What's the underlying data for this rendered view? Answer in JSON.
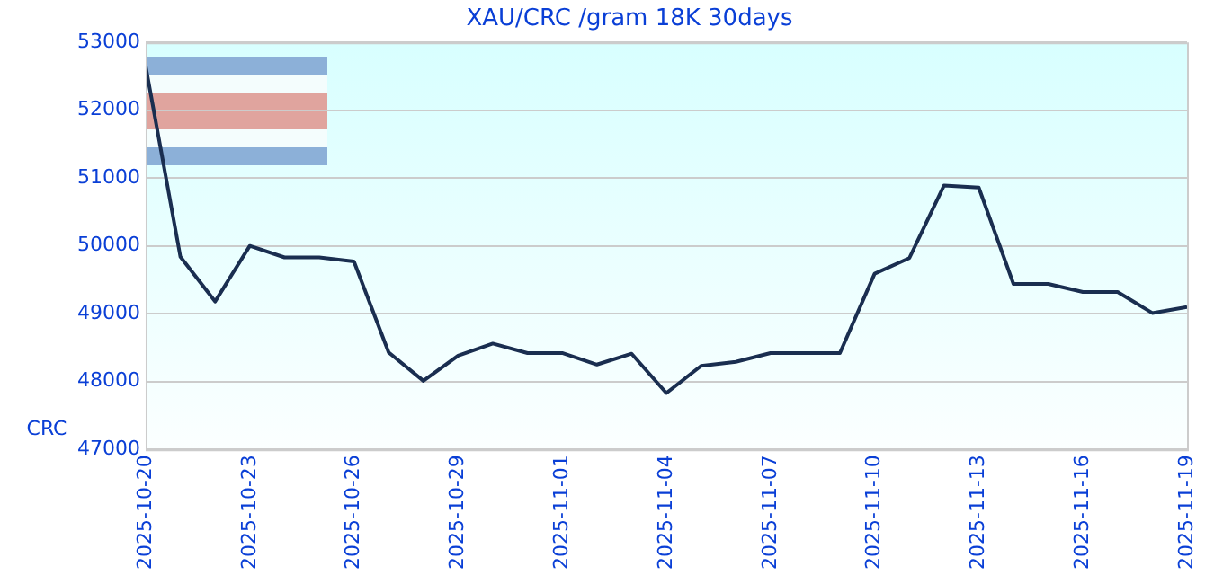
{
  "chart_data": {
    "type": "line",
    "title": "XAU/CRC /gram 18K 30days",
    "ylabel": "CRC",
    "x": [
      "2025-10-20",
      "2025-10-21",
      "2025-10-22",
      "2025-10-23",
      "2025-10-24",
      "2025-10-25",
      "2025-10-26",
      "2025-10-27",
      "2025-10-28",
      "2025-10-29",
      "2025-10-30",
      "2025-10-31",
      "2025-11-01",
      "2025-11-02",
      "2025-11-03",
      "2025-11-04",
      "2025-11-05",
      "2025-11-06",
      "2025-11-07",
      "2025-11-08",
      "2025-11-09",
      "2025-11-10",
      "2025-11-11",
      "2025-11-12",
      "2025-11-13",
      "2025-11-14",
      "2025-11-15",
      "2025-11-16",
      "2025-11-17",
      "2025-11-18",
      "2025-11-19"
    ],
    "series": [
      {
        "color": "#1a2e50",
        "values": [
          52650,
          49840,
          49180,
          50000,
          49830,
          49830,
          49770,
          48430,
          48010,
          48380,
          48560,
          48420,
          48420,
          48250,
          48410,
          47830,
          48230,
          48290,
          48420,
          48420,
          48420,
          49590,
          49820,
          50890,
          50860,
          49440,
          49440,
          49320,
          49320,
          49010,
          49100
        ]
      }
    ],
    "xlim": [
      "2025-10-20",
      "2025-11-19"
    ],
    "xticks": [
      "2025-10-20",
      "2025-10-23",
      "2025-10-26",
      "2025-10-29",
      "2025-11-01",
      "2025-11-04",
      "2025-11-07",
      "2025-11-10",
      "2025-11-13",
      "2025-11-16",
      "2025-11-19"
    ],
    "ylim": [
      47000,
      53000
    ],
    "yticks": [
      47000,
      48000,
      49000,
      50000,
      51000,
      52000,
      53000
    ],
    "grid": "y",
    "legend": false,
    "marker": "none",
    "line_style": "solid"
  }
}
